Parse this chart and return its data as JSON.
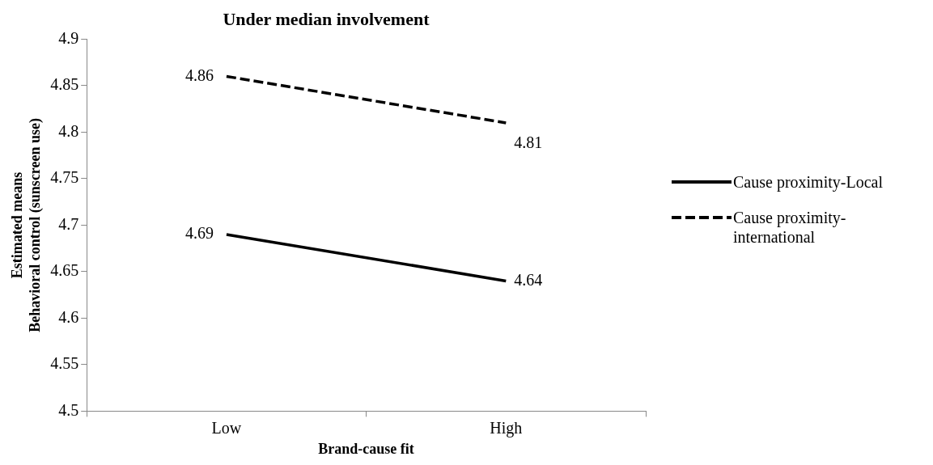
{
  "chart_data": {
    "type": "line",
    "title": "Under median involvement",
    "xlabel": "Brand-cause fit",
    "ylabel": "Estimated means\nBehavioral control (sunscreen use)",
    "categories": [
      "Low",
      "High"
    ],
    "series": [
      {
        "name": "Cause proximity-Local",
        "color": "#000000",
        "values": [
          4.69,
          4.64
        ],
        "line_style": "solid"
      },
      {
        "name": "Cause proximity-international",
        "color": "#000000",
        "values": [
          4.86,
          4.81
        ],
        "line_style": "dashed"
      }
    ],
    "ylim": [
      4.5,
      4.9
    ],
    "yticks": [
      4.5,
      4.55,
      4.6,
      4.65,
      4.7,
      4.75,
      4.8,
      4.85,
      4.9
    ],
    "grid": false,
    "legend": "right",
    "marker": "none",
    "data_labels": true
  }
}
